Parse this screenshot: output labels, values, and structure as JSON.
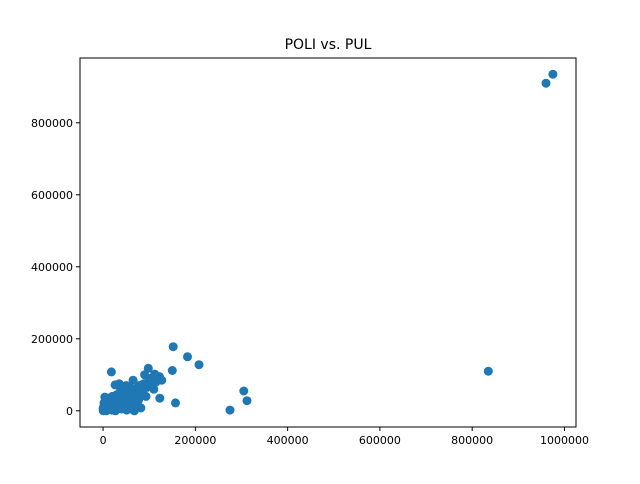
{
  "chart_data": {
    "type": "scatter",
    "title": "POLI vs. PUL",
    "xlabel": "",
    "ylabel": "",
    "xlim": [
      -50000,
      1025000
    ],
    "ylim": [
      -45000,
      980000
    ],
    "grid": false,
    "legend": "none",
    "color": "#1f77b4",
    "x_ticks": [
      {
        "value": 0,
        "label": "0"
      },
      {
        "value": 200000,
        "label": "200000"
      },
      {
        "value": 400000,
        "label": "400000"
      },
      {
        "value": 600000,
        "label": "600000"
      },
      {
        "value": 800000,
        "label": "800000"
      },
      {
        "value": 1000000,
        "label": "1000000"
      }
    ],
    "y_ticks": [
      {
        "value": 0,
        "label": "0"
      },
      {
        "value": 200000,
        "label": "200000"
      },
      {
        "value": 400000,
        "label": "400000"
      },
      {
        "value": 600000,
        "label": "600000"
      },
      {
        "value": 800000,
        "label": "800000"
      }
    ],
    "points": [
      {
        "x": 975000,
        "y": 935000
      },
      {
        "x": 960000,
        "y": 910000
      },
      {
        "x": 835000,
        "y": 110000
      },
      {
        "x": 312000,
        "y": 28000
      },
      {
        "x": 305000,
        "y": 55000
      },
      {
        "x": 275000,
        "y": 2000
      },
      {
        "x": 208000,
        "y": 128000
      },
      {
        "x": 183000,
        "y": 150000
      },
      {
        "x": 152000,
        "y": 178000
      },
      {
        "x": 150000,
        "y": 112000
      },
      {
        "x": 157000,
        "y": 22000
      },
      {
        "x": 122000,
        "y": 95000
      },
      {
        "x": 127000,
        "y": 85000
      },
      {
        "x": 123000,
        "y": 35000
      },
      {
        "x": 112000,
        "y": 102000
      },
      {
        "x": 115000,
        "y": 80000
      },
      {
        "x": 110000,
        "y": 60000
      },
      {
        "x": 98000,
        "y": 118000
      },
      {
        "x": 100000,
        "y": 90000
      },
      {
        "x": 95000,
        "y": 65000
      },
      {
        "x": 90000,
        "y": 100000
      },
      {
        "x": 88000,
        "y": 75000
      },
      {
        "x": 86000,
        "y": 50000
      },
      {
        "x": 82000,
        "y": 8000
      },
      {
        "x": 78000,
        "y": 70000
      },
      {
        "x": 75000,
        "y": 40000
      },
      {
        "x": 72000,
        "y": 62000
      },
      {
        "x": 70000,
        "y": 25000
      },
      {
        "x": 68000,
        "y": 0
      },
      {
        "x": 65000,
        "y": 85000
      },
      {
        "x": 62000,
        "y": 55000
      },
      {
        "x": 60000,
        "y": 30000
      },
      {
        "x": 58000,
        "y": 65000
      },
      {
        "x": 55000,
        "y": 10000
      },
      {
        "x": 52000,
        "y": 45000
      },
      {
        "x": 50000,
        "y": 70000
      },
      {
        "x": 48000,
        "y": 20000
      },
      {
        "x": 45000,
        "y": 55000
      },
      {
        "x": 42000,
        "y": 35000
      },
      {
        "x": 40000,
        "y": 5000
      },
      {
        "x": 38000,
        "y": 60000
      },
      {
        "x": 35000,
        "y": 75000
      },
      {
        "x": 33000,
        "y": 28000
      },
      {
        "x": 30000,
        "y": 45000
      },
      {
        "x": 28000,
        "y": 12000
      },
      {
        "x": 26000,
        "y": 72000
      },
      {
        "x": 24000,
        "y": 30000
      },
      {
        "x": 22000,
        "y": 18000
      },
      {
        "x": 20000,
        "y": 40000
      },
      {
        "x": 18000,
        "y": 108000
      },
      {
        "x": 16000,
        "y": 5000
      },
      {
        "x": 14000,
        "y": 22000
      },
      {
        "x": 12000,
        "y": 35000
      },
      {
        "x": 10000,
        "y": 12000
      },
      {
        "x": 8000,
        "y": 28000
      },
      {
        "x": 6000,
        "y": 3000
      },
      {
        "x": 5000,
        "y": 15000
      },
      {
        "x": 4000,
        "y": 38000
      },
      {
        "x": 3000,
        "y": 8000
      },
      {
        "x": 2000,
        "y": 22000
      },
      {
        "x": 1500,
        "y": 2000
      },
      {
        "x": 1000,
        "y": 10000
      },
      {
        "x": 500,
        "y": 0
      },
      {
        "x": 0,
        "y": 5000
      },
      {
        "x": 7000,
        "y": 0
      },
      {
        "x": 11000,
        "y": 4000
      },
      {
        "x": 15000,
        "y": 18000
      },
      {
        "x": 19000,
        "y": 2000
      },
      {
        "x": 23000,
        "y": 8000
      },
      {
        "x": 27000,
        "y": 0
      },
      {
        "x": 31000,
        "y": 15000
      },
      {
        "x": 36000,
        "y": 22000
      },
      {
        "x": 44000,
        "y": 12000
      },
      {
        "x": 53000,
        "y": 25000
      },
      {
        "x": 57000,
        "y": 5000
      },
      {
        "x": 63000,
        "y": 40000
      },
      {
        "x": 67000,
        "y": 48000
      },
      {
        "x": 74000,
        "y": 18000
      },
      {
        "x": 80000,
        "y": 55000
      },
      {
        "x": 93000,
        "y": 40000
      },
      {
        "x": 105000,
        "y": 72000
      },
      {
        "x": 9000,
        "y": 20000
      },
      {
        "x": 13000,
        "y": 9000
      },
      {
        "x": 17000,
        "y": 30000
      },
      {
        "x": 21000,
        "y": 14000
      },
      {
        "x": 25000,
        "y": 24000
      },
      {
        "x": 29000,
        "y": 6000
      },
      {
        "x": 34000,
        "y": 10000
      },
      {
        "x": 39000,
        "y": 18000
      },
      {
        "x": 46000,
        "y": 30000
      },
      {
        "x": 51000,
        "y": 2000
      },
      {
        "x": 59000,
        "y": 15000
      },
      {
        "x": 66000,
        "y": 10000
      },
      {
        "x": 71000,
        "y": 45000
      },
      {
        "x": 77000,
        "y": 30000
      },
      {
        "x": 85000,
        "y": 65000
      }
    ]
  }
}
